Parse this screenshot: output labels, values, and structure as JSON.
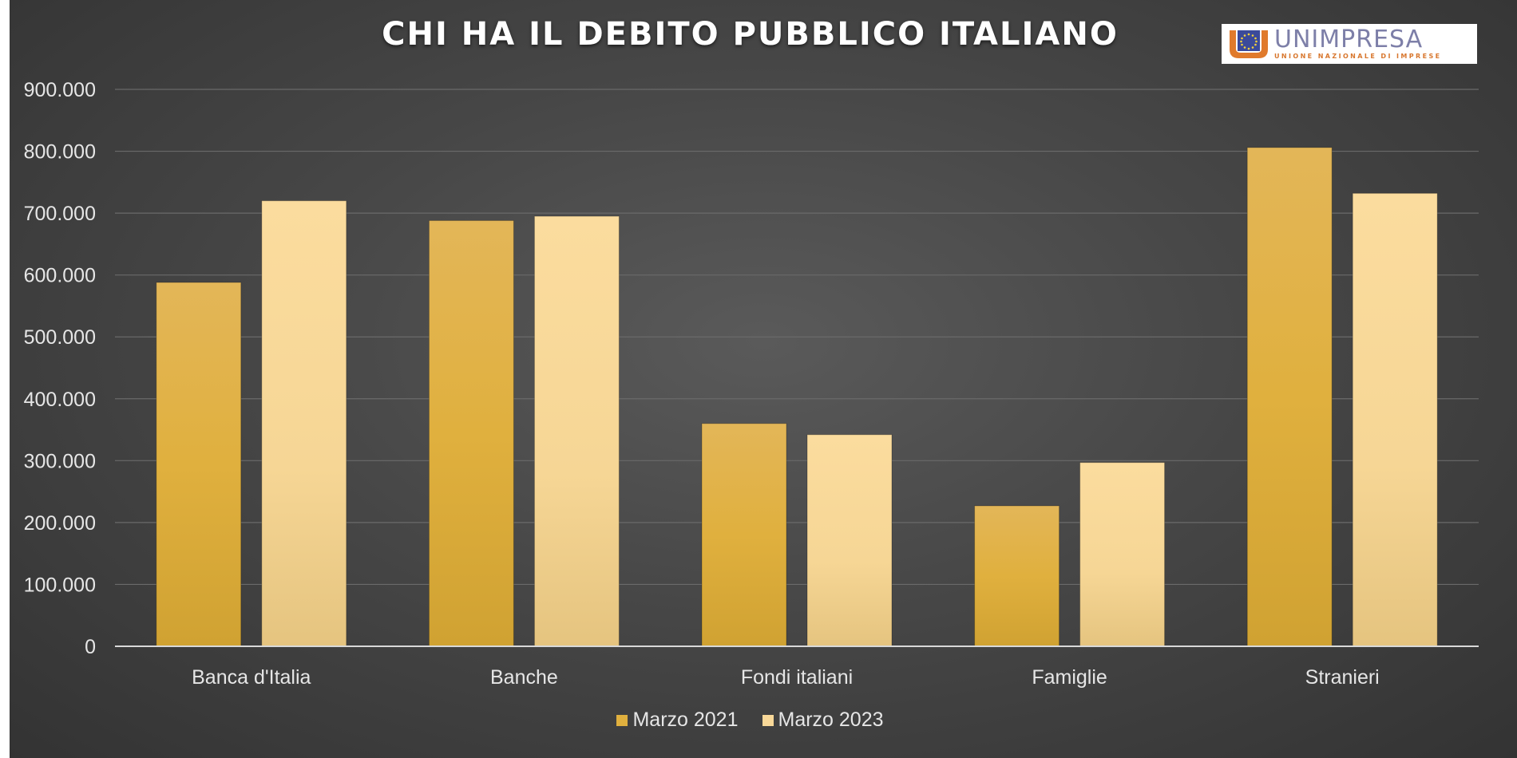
{
  "chart_data": {
    "type": "bar",
    "title": "CHI HA IL DEBITO PUBBLICO ITALIANO",
    "categories": [
      "Banca d'Italia",
      "Banche",
      "Fondi italiani",
      "Famiglie",
      "Stranieri"
    ],
    "series": [
      {
        "name": "Marzo 2021",
        "values": [
          588000,
          688000,
          360000,
          227000,
          806000
        ],
        "color": "#e0b03e"
      },
      {
        "name": "Marzo 2023",
        "values": [
          720000,
          695000,
          342000,
          297000,
          732000
        ],
        "color": "#f8d898"
      }
    ],
    "ylim": [
      0,
      900000
    ],
    "yticks": [
      "0",
      "100.000",
      "200.000",
      "300.000",
      "400.000",
      "500.000",
      "600.000",
      "700.000",
      "800.000",
      "900.000"
    ],
    "grid": true,
    "legend": "bottom"
  },
  "logo": {
    "text": "UNIMPRESA",
    "subtitle": "UNIONE NAZIONALE DI IMPRESE"
  }
}
